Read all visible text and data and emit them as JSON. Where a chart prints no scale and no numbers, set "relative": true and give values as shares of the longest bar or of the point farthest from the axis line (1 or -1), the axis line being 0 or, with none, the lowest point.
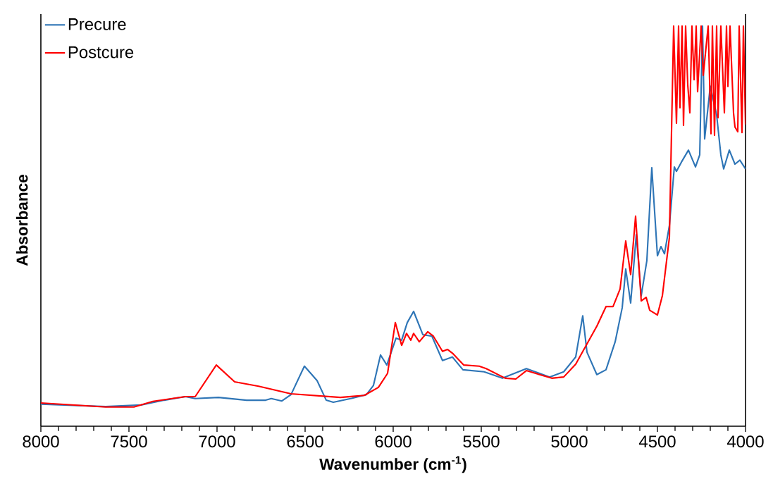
{
  "chart_data": {
    "type": "line",
    "relative": true,
    "xlabel": "Wavenumber (cm$^{-1}$)",
    "ylabel": "Absorbance",
    "xlim": [
      8000,
      4000
    ],
    "xticks": [
      8000,
      7500,
      7000,
      6500,
      6000,
      5500,
      5000,
      4500,
      4000
    ],
    "legend": "top left",
    "series": [
      {
        "name": "Precure",
        "color": "#2e75b6",
        "x": [
          8000,
          7632,
          7432,
          7300,
          7180,
          7124,
          6992,
          6832,
          6724,
          6692,
          6632,
          6580,
          6504,
          6432,
          6380,
          6340,
          6232,
          6152,
          6112,
          6072,
          6036,
          5984,
          5952,
          5920,
          5884,
          5832,
          5780,
          5720,
          5664,
          5604,
          5484,
          5380,
          5244,
          5112,
          5032,
          4964,
          4924,
          4900,
          4844,
          4792,
          4740,
          4700,
          4680,
          4652,
          4620,
          4592,
          4560,
          4532,
          4500,
          4480,
          4460,
          4432,
          4404,
          4392,
          4364,
          4324,
          4284,
          4260,
          4244,
          4232,
          4200,
          4164,
          4140,
          4124,
          4092,
          4060,
          4032,
          4000
        ],
        "values": [
          0.055,
          0.049,
          0.053,
          0.065,
          0.074,
          0.069,
          0.072,
          0.065,
          0.065,
          0.069,
          0.063,
          0.079,
          0.15,
          0.114,
          0.065,
          0.06,
          0.07,
          0.079,
          0.102,
          0.178,
          0.153,
          0.22,
          0.215,
          0.259,
          0.287,
          0.229,
          0.225,
          0.164,
          0.173,
          0.141,
          0.136,
          0.12,
          0.144,
          0.123,
          0.136,
          0.173,
          0.276,
          0.185,
          0.129,
          0.141,
          0.211,
          0.296,
          0.393,
          0.308,
          0.479,
          0.326,
          0.414,
          0.646,
          0.426,
          0.449,
          0.431,
          0.502,
          0.648,
          0.637,
          0.66,
          0.69,
          0.648,
          0.678,
          1.0,
          0.718,
          0.85,
          0.778,
          0.678,
          0.643,
          0.69,
          0.655,
          0.665,
          0.643
        ]
      },
      {
        "name": "Postcure",
        "color": "#ff0000",
        "x": [
          8000,
          7632,
          7472,
          7364,
          7180,
          7124,
          7004,
          6900,
          6764,
          6580,
          6300,
          6164,
          6084,
          6032,
          5988,
          5952,
          5924,
          5900,
          5884,
          5852,
          5804,
          5772,
          5720,
          5692,
          5660,
          5600,
          5512,
          5472,
          5364,
          5304,
          5244,
          5100,
          5032,
          4964,
          4844,
          4792,
          4752,
          4712,
          4680,
          4652,
          4624,
          4592,
          4564,
          4544,
          4500,
          4472,
          4432,
          4408,
          4392,
          4380,
          4372,
          4360,
          4352,
          4340,
          4328,
          4316,
          4304,
          4292,
          4280,
          4272,
          4252,
          4240,
          4212,
          4196,
          4188,
          4176,
          4164,
          4156,
          4140,
          4120,
          4108,
          4100,
          4088,
          4068,
          4060,
          4044,
          4036,
          4020,
          4012,
          4000
        ],
        "values": [
          0.058,
          0.048,
          0.048,
          0.062,
          0.074,
          0.074,
          0.153,
          0.111,
          0.1,
          0.081,
          0.072,
          0.077,
          0.097,
          0.132,
          0.259,
          0.202,
          0.232,
          0.215,
          0.232,
          0.211,
          0.236,
          0.225,
          0.187,
          0.192,
          0.181,
          0.153,
          0.15,
          0.144,
          0.12,
          0.118,
          0.139,
          0.12,
          0.123,
          0.155,
          0.25,
          0.299,
          0.299,
          0.343,
          0.463,
          0.379,
          0.525,
          0.313,
          0.322,
          0.29,
          0.278,
          0.326,
          0.472,
          1.0,
          0.757,
          1.0,
          0.796,
          1.0,
          0.752,
          1.0,
          0.854,
          0.783,
          1.0,
          0.866,
          1.0,
          0.836,
          1.0,
          0.877,
          1.0,
          0.731,
          1.0,
          0.727,
          1.0,
          0.771,
          1.0,
          0.783,
          1.0,
          0.849,
          1.0,
          0.783,
          0.748,
          0.736,
          1.0,
          0.734,
          1.0,
          0.754
        ]
      }
    ]
  }
}
